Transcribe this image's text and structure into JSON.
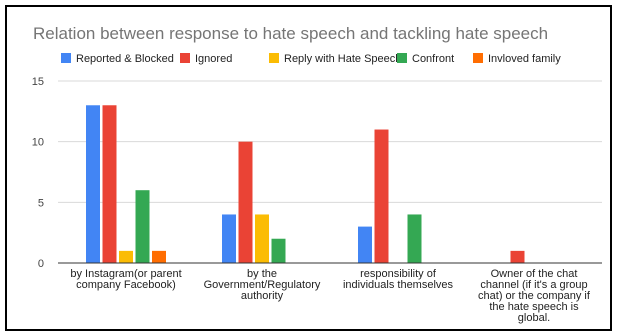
{
  "chart_data": {
    "type": "bar",
    "title": "Relation between response to hate speech and tackling hate speech",
    "xlabel": "",
    "ylabel": "",
    "ylim": [
      0,
      15
    ],
    "yticks": [
      0,
      5,
      10,
      15
    ],
    "grid": true,
    "legend_position": "top",
    "categories": [
      [
        "by Instagram(or parent",
        "company Facebook)"
      ],
      [
        "by the",
        "Government/Regulatory",
        "authority"
      ],
      [
        "responsibility of",
        "individuals themselves"
      ],
      [
        "Owner of the chat",
        "channel (if it's a group",
        "chat) or the company if",
        "the hate speech is",
        "global."
      ]
    ],
    "series": [
      {
        "name": "Reported & Blocked",
        "color": "#4285F4",
        "values": [
          13,
          4,
          3,
          0
        ]
      },
      {
        "name": "Ignored",
        "color": "#EA4335",
        "values": [
          13,
          10,
          11,
          1
        ]
      },
      {
        "name": "Reply with Hate Speech",
        "color": "#FBBC04",
        "values": [
          1,
          4,
          0,
          0
        ]
      },
      {
        "name": "Confront",
        "color": "#34A853",
        "values": [
          6,
          2,
          4,
          0
        ]
      },
      {
        "name": "Invloved family",
        "color": "#FF6D01",
        "values": [
          1,
          0,
          0,
          0
        ]
      }
    ]
  }
}
